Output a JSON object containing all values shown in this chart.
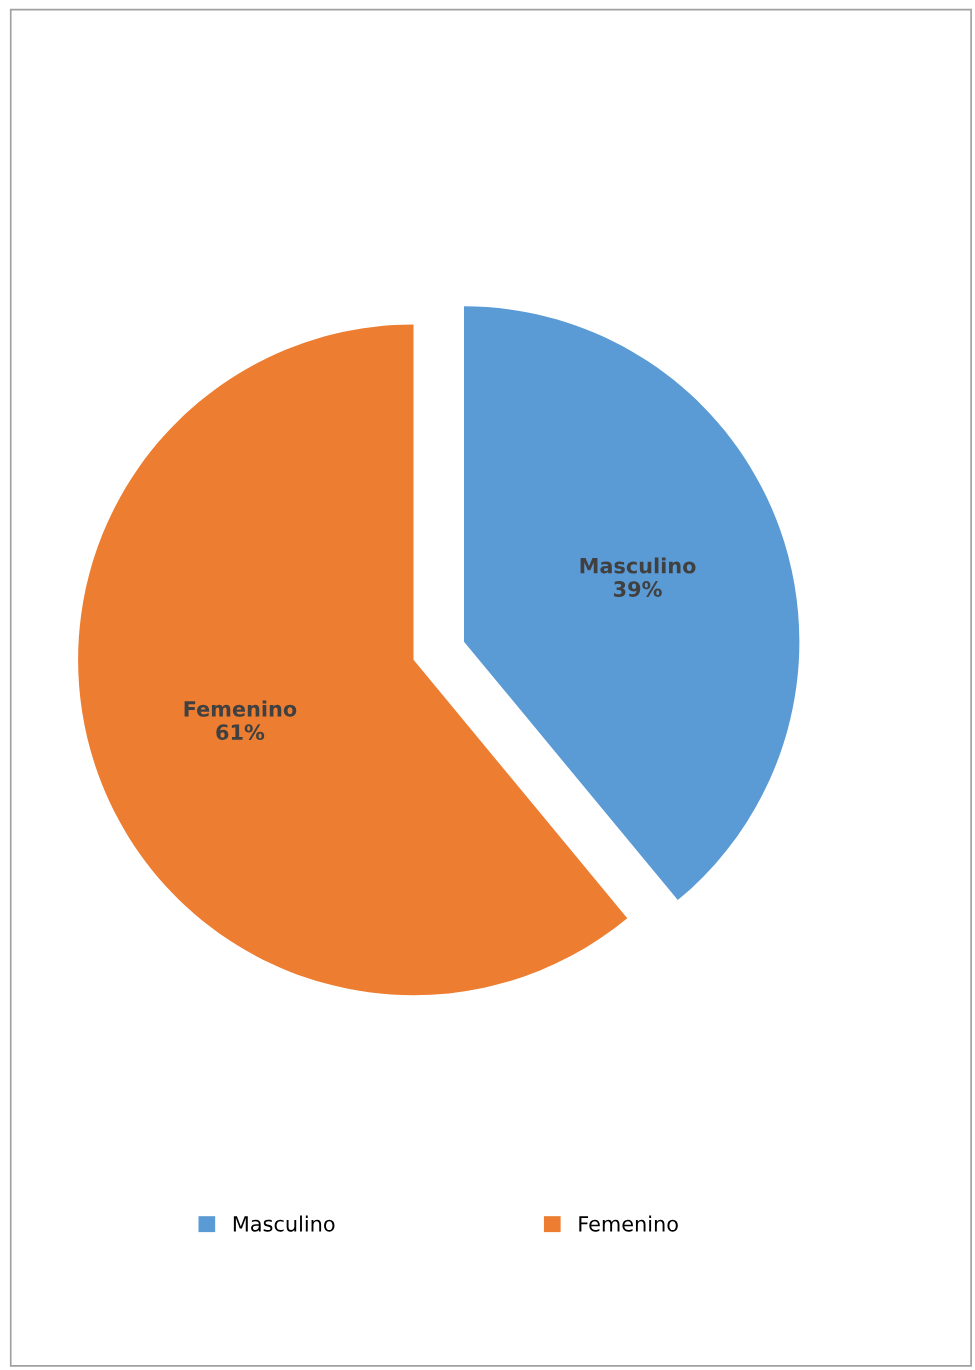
{
  "chart_data": {
    "type": "pie",
    "categories": [
      "Masculino",
      "Femenino"
    ],
    "values": [
      39,
      61
    ],
    "colors": [
      "#5b9bd5",
      "#ed7d31"
    ],
    "value_labels": [
      "39%",
      "61%"
    ],
    "legend": "bottom"
  }
}
